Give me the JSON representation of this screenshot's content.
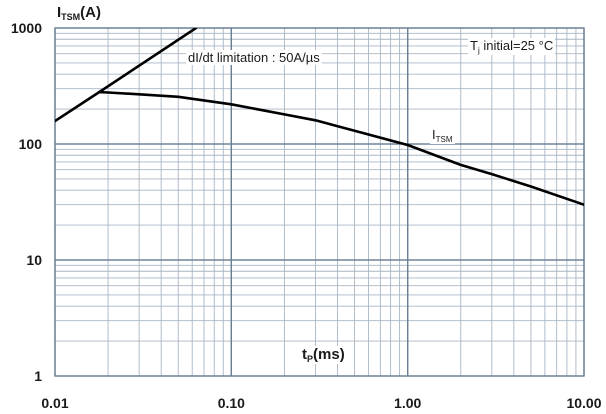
{
  "chart_data": {
    "type": "line",
    "x_scale": "log",
    "y_scale": "log",
    "xlim": [
      0.01,
      10
    ],
    "ylim": [
      1,
      1000
    ],
    "grid": true,
    "x_ticks": [
      "0.01",
      "0.10",
      "1.00",
      "10.00"
    ],
    "y_ticks": [
      "1000",
      "100",
      "10",
      "1"
    ],
    "y_title": {
      "main": "I",
      "sub": "TSM",
      "unit": "(A)"
    },
    "x_title": {
      "main": "t",
      "sub": "P",
      "unit": "(ms)"
    },
    "annotations": {
      "didt": "dI/dt limitation : 50A/µs",
      "tj": {
        "main": "T",
        "sub": "j",
        "rest": " initial=25 °C"
      },
      "itsm": {
        "main": "I",
        "sub": "TSM"
      }
    },
    "series": [
      {
        "x": [
          0.01,
          0.0178,
          0.063
        ],
        "y": [
          158,
          280,
          1000
        ],
        "color": "#000000"
      },
      {
        "x": [
          0.0178,
          0.02,
          0.03,
          0.05,
          0.1,
          0.2,
          0.3,
          0.5,
          1,
          2,
          3,
          5,
          10
        ],
        "y": [
          280,
          278,
          268,
          255,
          220,
          180,
          160,
          130,
          98,
          66,
          55,
          43,
          30
        ],
        "color": "#000000"
      }
    ]
  }
}
